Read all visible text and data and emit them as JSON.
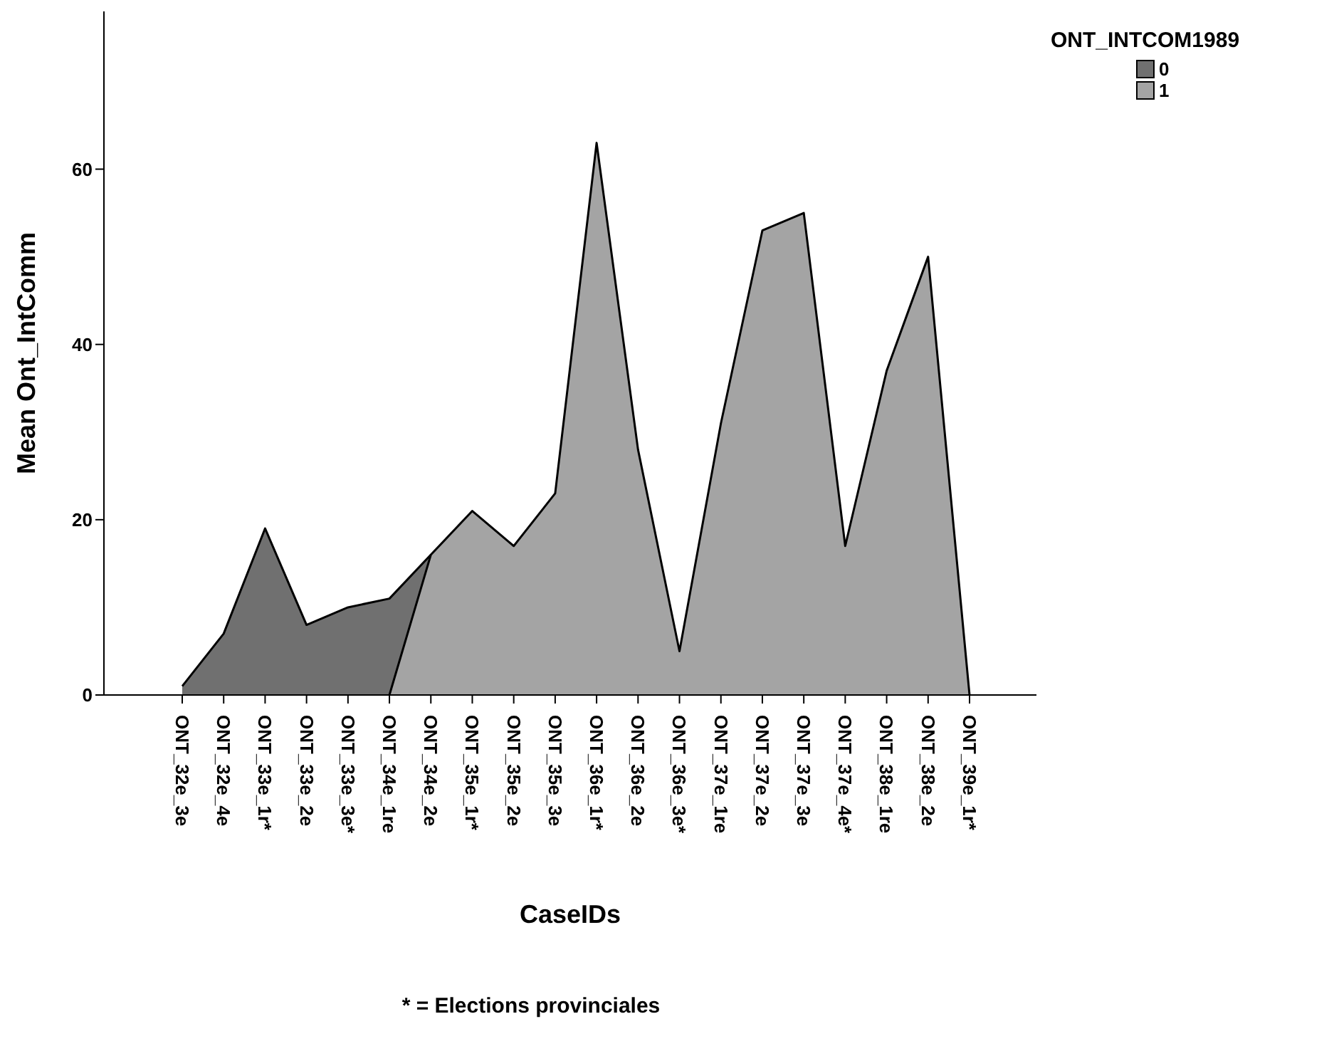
{
  "chart_data": {
    "type": "area",
    "xlabel": "CaseIDs",
    "ylabel": "Mean Ont_IntComm",
    "legend_title": "ONT_INTCOM1989",
    "categories": [
      "ONT_32e_3e",
      "ONT_32e_4e",
      "ONT_33e_1r*",
      "ONT_33e_2e",
      "ONT_33e_3e*",
      "ONT_34e_1re",
      "ONT_34e_2e",
      "ONT_35e_1r*",
      "ONT_35e_2e",
      "ONT_35e_3e",
      "ONT_36e_1r*",
      "ONT_36e_2e",
      "ONT_36e_3e*",
      "ONT_37e_1re",
      "ONT_37e_2e",
      "ONT_37e_3e",
      "ONT_37e_4e*",
      "ONT_38e_1re",
      "ONT_38e_2e",
      "ONT_39e_1r*"
    ],
    "series": [
      {
        "name": "0",
        "color": "#707070",
        "values": [
          1,
          7,
          19,
          8,
          10,
          11,
          16,
          null,
          null,
          null,
          null,
          null,
          null,
          null,
          null,
          null,
          null,
          null,
          null,
          null
        ]
      },
      {
        "name": "1",
        "color": "#a4a4a4",
        "values": [
          null,
          null,
          null,
          null,
          null,
          0,
          16,
          21,
          17,
          23,
          63,
          28,
          5,
          31,
          53,
          55,
          17,
          37,
          50,
          0
        ]
      }
    ],
    "ylim": [
      0,
      78
    ],
    "yticks": [
      0,
      20,
      40,
      60
    ],
    "legend": "top right",
    "annotations": [
      "* = Elections provinciales"
    ]
  }
}
